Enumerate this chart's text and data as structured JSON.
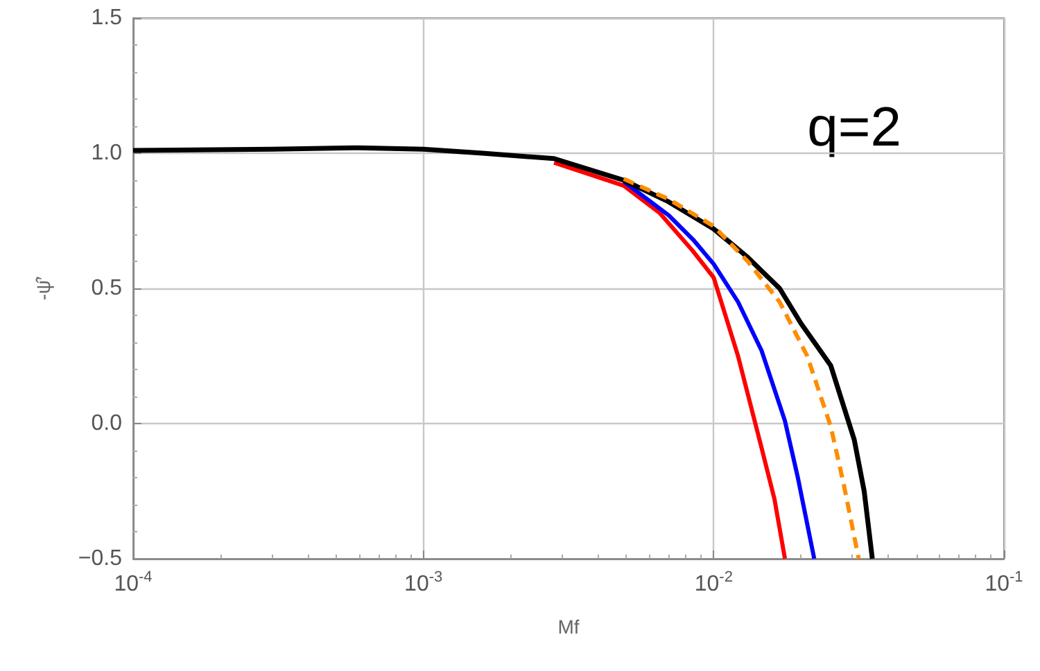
{
  "chart_data": {
    "type": "line",
    "xlabel": "Mf",
    "ylabel": "-ψ̂′",
    "log": "x",
    "grid": true,
    "marker": "none",
    "annotations": [
      "q=2"
    ],
    "xlim": [
      0.0001,
      0.1
    ],
    "ylim": [
      -0.5,
      1.5
    ],
    "xticks": [
      {
        "value": 0.0001,
        "label": "10$^{-4}$"
      },
      {
        "value": 0.001,
        "label": "10$^{-3}$"
      },
      {
        "value": 0.01,
        "label": "10$^{-2}$"
      },
      {
        "value": 0.1,
        "label": "10$^{-1}$"
      }
    ],
    "yticks": [
      {
        "value": -0.5,
        "label": "−0.5"
      },
      {
        "value": 0,
        "label": "0.0"
      },
      {
        "value": 0.5,
        "label": "0.5"
      },
      {
        "value": 1,
        "label": "1.0"
      },
      {
        "value": 1.5,
        "label": "1.5"
      }
    ],
    "series": [
      {
        "color": "#ff0000",
        "line_style": "solid",
        "x": [
          0.00282,
          0.0049,
          0.0065,
          0.00845,
          0.01,
          0.01213,
          0.01462,
          0.0162,
          0.0176
        ],
        "values": [
          0.965,
          0.88,
          0.78,
          0.64,
          0.54,
          0.25,
          -0.09,
          -0.28,
          -0.5
        ]
      },
      {
        "color": "#0000ff",
        "line_style": "solid",
        "x": [
          0.0049,
          0.007,
          0.0085,
          0.01,
          0.01213,
          0.01462,
          0.0176,
          0.0195,
          0.0222
        ],
        "values": [
          0.895,
          0.77,
          0.68,
          0.59,
          0.45,
          0.27,
          0.01,
          -0.2,
          -0.5
        ]
      },
      {
        "color": "#ff8c00",
        "line_style": "dashed",
        "x": [
          0.0049,
          0.007,
          0.01,
          0.0131,
          0.01687,
          0.021,
          0.0253,
          0.028,
          0.0316
        ],
        "values": [
          0.905,
          0.83,
          0.73,
          0.6,
          0.45,
          0.25,
          -0.01,
          -0.22,
          -0.5
        ]
      },
      {
        "color": "#000000",
        "line_style": "solid",
        "x": [
          0.0001,
          0.0003,
          0.0006,
          0.001,
          0.0016,
          0.00282,
          0.0049,
          0.007,
          0.01,
          0.0131,
          0.01687,
          0.02,
          0.0253,
          0.0305,
          0.033,
          0.0352
        ],
        "values": [
          1.01,
          1.015,
          1.02,
          1.015,
          1.0,
          0.98,
          0.9,
          0.82,
          0.72,
          0.615,
          0.5,
          0.37,
          0.215,
          -0.06,
          -0.25,
          -0.5
        ]
      }
    ]
  }
}
